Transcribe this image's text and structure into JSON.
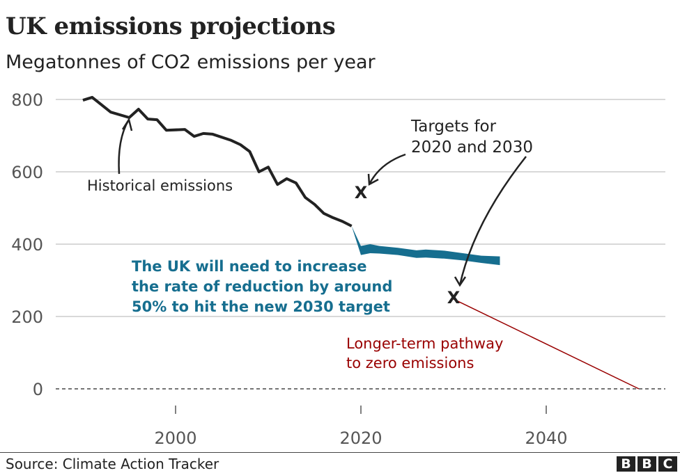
{
  "chart_data": {
    "type": "line",
    "title": "UK emissions projections",
    "subtitle": "Megatonnes of CO2 emissions per year",
    "source": "Source: Climate Action Tracker",
    "ylim": [
      0,
      800
    ],
    "yticks": [
      0,
      200,
      400,
      600,
      800
    ],
    "xlim": [
      1989,
      2052
    ],
    "xticks": [
      2000,
      2020,
      2040
    ],
    "grid": true,
    "series": [
      {
        "name": "Historical emissions",
        "color": "#222222",
        "x": [
          1990,
          1991,
          1993,
          1995,
          1996,
          1997,
          1998,
          1999,
          2001,
          2002,
          2003,
          2004,
          2006,
          2007,
          2008,
          2009,
          2010,
          2011,
          2012,
          2013,
          2014,
          2015,
          2016,
          2017,
          2018,
          2019
        ],
        "y": [
          798,
          806,
          765,
          750,
          773,
          746,
          744,
          715,
          717,
          698,
          706,
          704,
          687,
          675,
          656,
          600,
          613,
          565,
          581,
          569,
          529,
          510,
          485,
          473,
          463,
          450
        ]
      },
      {
        "type": "band",
        "color": "#166e8f",
        "x": [
          2019,
          2020,
          2021,
          2022,
          2024,
          2026,
          2027,
          2029,
          2031,
          2033,
          2035
        ],
        "upper": [
          450,
          395,
          400,
          395,
          390,
          383,
          385,
          382,
          375,
          368,
          366
        ],
        "lower": [
          450,
          370,
          375,
          374,
          370,
          362,
          363,
          360,
          355,
          348,
          342
        ]
      },
      {
        "name": "Longer-term pathway to zero emissions",
        "color": "#990000",
        "x": [
          2030,
          2050
        ],
        "y": [
          248,
          0
        ]
      }
    ],
    "targets": {
      "x": [
        2020,
        2030
      ],
      "y": [
        544,
        254
      ],
      "marker": "X"
    },
    "annotations": {
      "historical": "Historical emissions",
      "targets_line1": "Targets for",
      "targets_line2": "2020 and 2030",
      "blue_line1": "The UK will need to increase",
      "blue_line2": "the rate of reduction by around",
      "blue_line3": "50% to hit the new 2030 target",
      "red_line1": "Longer-term pathway",
      "red_line2": "to zero emissions"
    },
    "logo": "BBC"
  }
}
